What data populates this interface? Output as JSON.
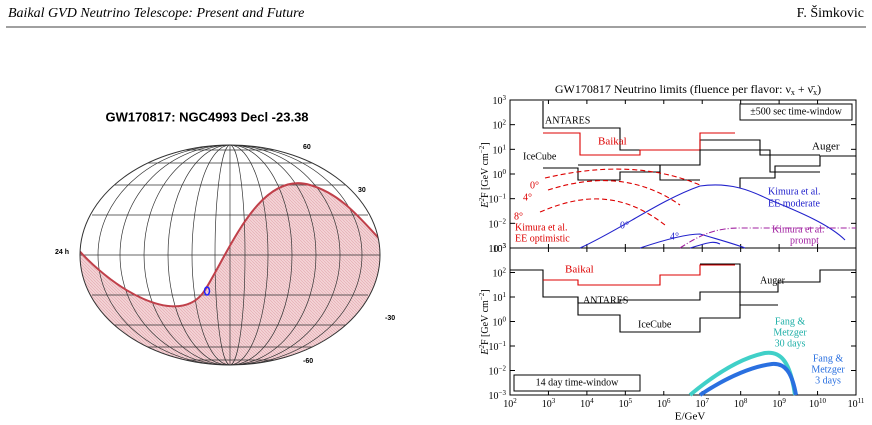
{
  "header": {
    "title": "Baikal GVD Neutrino Telescope: Present and Future",
    "author": "F. Šimkovic"
  },
  "sky_map": {
    "title": "GW170817: NGC4993 Decl -23.38",
    "labels": [
      "60",
      "30",
      "24 h",
      "-30",
      "-60"
    ]
  },
  "limits_figure": {
    "title": "GW170817 Neutrino limits (fluence per flavor: ν",
    "title_sub": "x",
    "title_plus": " + ν̄",
    "title_sub2": "x",
    "title_end": ")",
    "x_label": "E/GeV",
    "y_label": "E",
    "y_label_sup": "2",
    "y_label_mid": "F [GeV cm",
    "y_label_sup2": "−2",
    "y_label_end": "]",
    "tick_base": "10",
    "x_exponents": [
      "2",
      "3",
      "4",
      "5",
      "6",
      "7",
      "8",
      "9",
      "10",
      "11"
    ],
    "y_exponents": [
      "3",
      "2",
      "1",
      "0",
      "−1",
      "−2",
      "−3"
    ],
    "top_panel": {
      "window": "±500 sec time-window",
      "labels": [
        "ANTARES",
        "Baikal",
        "IceCube",
        "Auger",
        "0°",
        "4°",
        "8°",
        "Kimura et al.",
        "EE optimistic",
        "0°",
        "4°",
        "Kimura et al.",
        "EE moderate",
        "Kimura et al.",
        "prompt"
      ]
    },
    "bottom_panel": {
      "window": "14 day time-window",
      "labels": [
        "Baikal",
        "Auger",
        "ANTARES",
        "IceCube",
        "Fang &",
        "Metzger",
        "30 days",
        "Fang &",
        "Metzger",
        "3 days"
      ]
    }
  }
}
